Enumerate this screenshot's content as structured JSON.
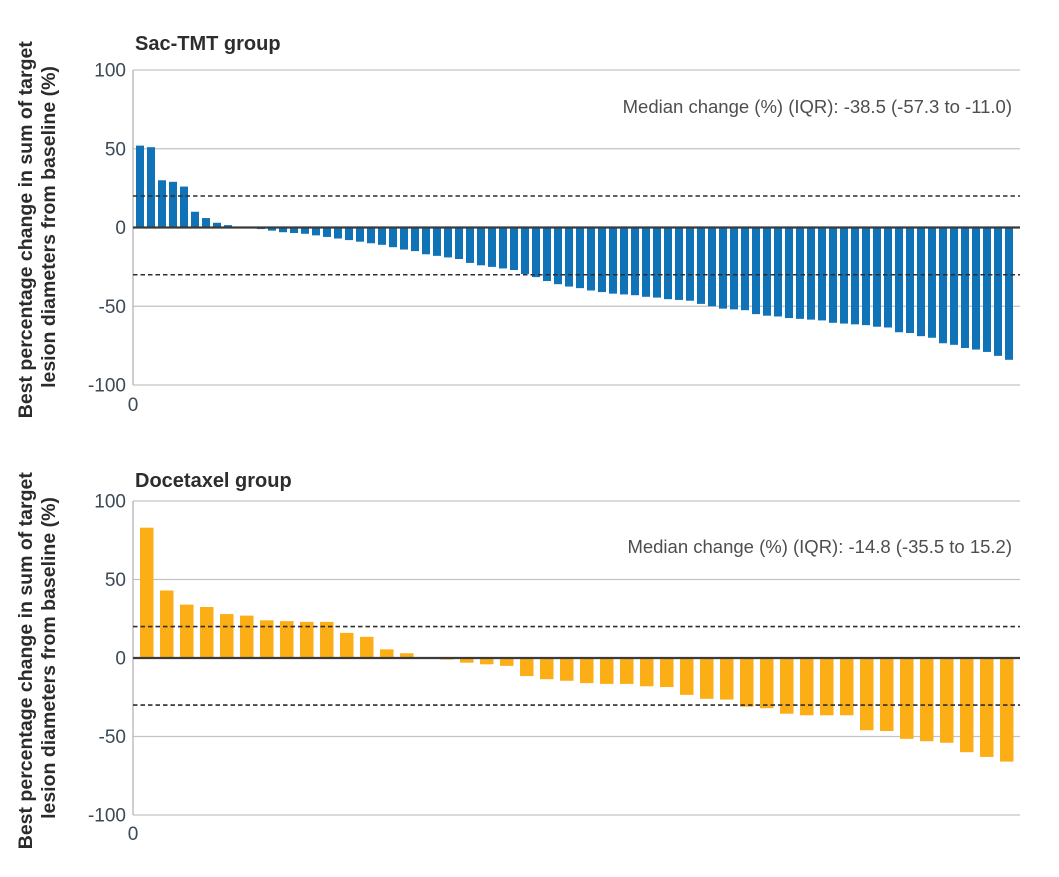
{
  "y_axis_label": {
    "line1": "Best percentage change in sum of target",
    "line2": "lesion diameters from baseline (%)"
  },
  "chart_data": [
    {
      "type": "bar",
      "title": "Sac-TMT group",
      "annotation": "Median change (%) (IQR): -38.5 (-57.3 to -11.0)",
      "median_change_pct": -38.5,
      "iqr": [
        -57.3,
        -11.0
      ],
      "bar_color": "#1173B7",
      "ylim": [
        -100,
        100
      ],
      "y_ticks": [
        100,
        50,
        0,
        -50,
        -100
      ],
      "x_tick_label": "0",
      "dashed_reference_lines": [
        20,
        -30
      ],
      "grid": "horizontal",
      "values": [
        52,
        51,
        30,
        29,
        26,
        10,
        6,
        3,
        1.5,
        0.5,
        -0.5,
        -1,
        -2,
        -3,
        -3.5,
        -4,
        -5,
        -6,
        -7,
        -8,
        -9,
        -10,
        -11,
        -12.5,
        -14,
        -15,
        -17,
        -18,
        -19,
        -20,
        -22.5,
        -24,
        -25,
        -26,
        -27,
        -29.5,
        -31.5,
        -34,
        -36,
        -37.5,
        -38.5,
        -40,
        -41,
        -42,
        -42.5,
        -43,
        -44,
        -44.5,
        -45.5,
        -46,
        -46.5,
        -48.5,
        -50,
        -51.5,
        -52,
        -52.5,
        -55,
        -56,
        -56.5,
        -57.5,
        -58,
        -58.5,
        -59,
        -60.5,
        -61,
        -61.5,
        -62,
        -63,
        -63.5,
        -66.5,
        -67,
        -69,
        -70,
        -73.5,
        -74.5,
        -76.5,
        -77.5,
        -79,
        -81.5,
        -84
      ]
    },
    {
      "type": "bar",
      "title": "Docetaxel group",
      "annotation": "Median change (%) (IQR): -14.8 (-35.5 to 15.2)",
      "median_change_pct": -14.8,
      "iqr": [
        -35.5,
        15.2
      ],
      "bar_color": "#FCAE17",
      "ylim": [
        -100,
        100
      ],
      "y_ticks": [
        100,
        50,
        0,
        -50,
        -100
      ],
      "x_tick_label": "0",
      "dashed_reference_lines": [
        20,
        -30
      ],
      "grid": "horizontal",
      "values": [
        83,
        43,
        34,
        32.5,
        28,
        27,
        24,
        23.5,
        23,
        23,
        16,
        13.5,
        5.5,
        3,
        0.5,
        -1,
        -3,
        -4,
        -5,
        -11.5,
        -13.5,
        -14.5,
        -16,
        -16.5,
        -16.5,
        -18,
        -18.5,
        -23.5,
        -26,
        -26.5,
        -31,
        -32,
        -35.5,
        -36.5,
        -36.5,
        -36.5,
        -46,
        -46.5,
        -51.5,
        -53,
        -54,
        -60,
        -63,
        -66
      ]
    }
  ]
}
